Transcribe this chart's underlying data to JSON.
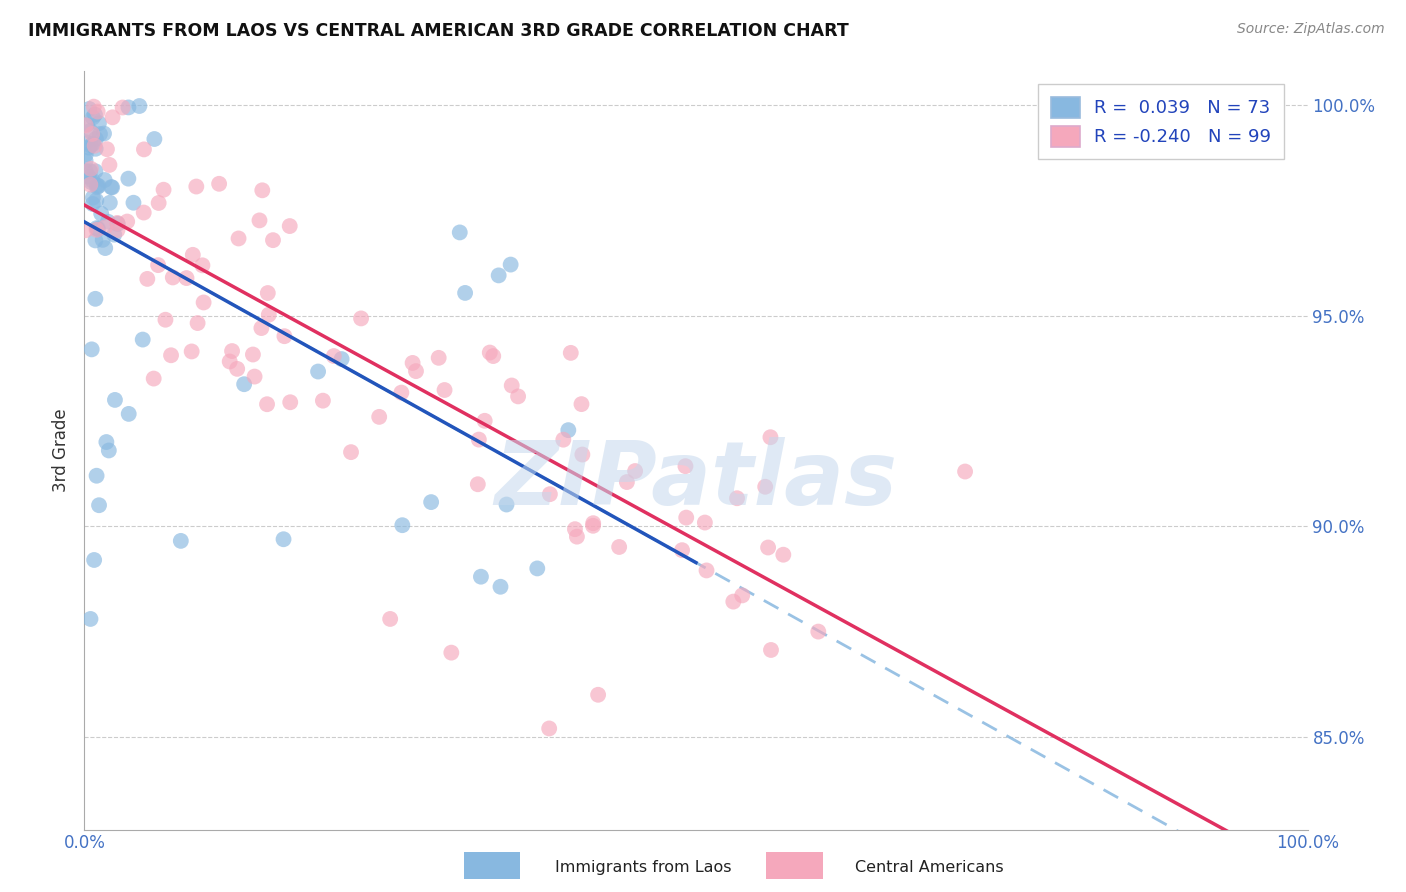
{
  "title": "IMMIGRANTS FROM LAOS VS CENTRAL AMERICAN 3RD GRADE CORRELATION CHART",
  "source": "Source: ZipAtlas.com",
  "ylabel": "3rd Grade",
  "xlim": [
    0.0,
    1.0
  ],
  "ylim": [
    0.828,
    1.008
  ],
  "ytick_vals": [
    0.85,
    0.9,
    0.95,
    1.0
  ],
  "ytick_labels": [
    "85.0%",
    "90.0%",
    "95.0%",
    "100.0%"
  ],
  "legend_labels": [
    "Immigrants from Laos",
    "Central Americans"
  ],
  "blue_color": "#88b8e0",
  "pink_color": "#f5a8bc",
  "blue_line_color": "#2255bb",
  "pink_line_color": "#e03060",
  "blue_dashed_color": "#88b8e0",
  "watermark_text": "ZIPatlas",
  "watermark_color": "#c5d8ed",
  "r_blue": 0.039,
  "r_pink": -0.24,
  "n_blue": 73,
  "n_pink": 99,
  "blue_seed": 7,
  "pink_seed": 13
}
